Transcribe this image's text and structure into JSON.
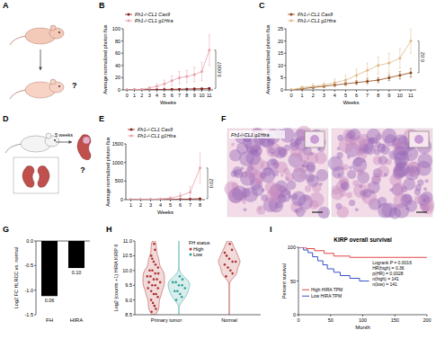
{
  "panel_labels": [
    "A",
    "B",
    "C",
    "D",
    "E",
    "F",
    "G",
    "H",
    "I"
  ],
  "diagrams": {
    "A": {
      "question": "?"
    },
    "D": {
      "duration": "5 weeks",
      "question": "?"
    },
    "F": {
      "label": "Fh1-/-CL1 g1Hira"
    }
  },
  "chart_data": [
    {
      "type": "line",
      "x": [
        0,
        1,
        2,
        3,
        4,
        5,
        6,
        7,
        8,
        9,
        10,
        11
      ],
      "xlim": [
        -0.5,
        11.5
      ],
      "xticks": [
        0,
        1,
        2,
        3,
        4,
        5,
        6,
        7,
        8,
        9,
        10,
        11
      ],
      "ylim": [
        0,
        100
      ],
      "yticks": [
        0,
        20,
        40,
        60,
        80,
        100
      ],
      "x_label": "Weeks",
      "y_label": "Average normalized photon flux",
      "annotation": "0.0007",
      "marker": "circle",
      "legend": "top left",
      "series": [
        {
          "name": "Fh1-/-CL1 Cas9",
          "color": "#8b1a1a",
          "values": [
            0,
            0.2,
            0.3,
            0.5,
            0.6,
            0.8,
            1,
            1.2,
            1.5,
            1.8,
            2,
            2.5
          ],
          "errors": [
            0,
            0.1,
            0.2,
            0.3,
            0.3,
            0.4,
            0.5,
            0.6,
            0.7,
            0.8,
            1,
            1.2
          ]
        },
        {
          "name": "Fh1-/-CL1 g1Hira",
          "color": "#e8a0a8",
          "values": [
            0,
            0.5,
            1,
            3,
            6,
            10,
            15,
            20,
            22,
            25,
            30,
            65
          ],
          "errors": [
            0,
            0.5,
            1,
            2,
            4,
            6,
            8,
            10,
            10,
            12,
            15,
            25
          ]
        }
      ]
    },
    {
      "type": "line",
      "x": [
        0,
        1,
        2,
        3,
        4,
        5,
        6,
        7,
        8,
        9,
        10,
        11
      ],
      "xlim": [
        -0.5,
        11.5
      ],
      "xticks": [
        0,
        1,
        2,
        3,
        4,
        5,
        6,
        7,
        8,
        9,
        10,
        11
      ],
      "ylim": [
        0,
        25
      ],
      "yticks": [
        0,
        5,
        10,
        15,
        20,
        25
      ],
      "x_label": "Weeks",
      "y_label": "Average normalized photon flux",
      "annotation": "0.02",
      "marker": "circle",
      "legend": "top left",
      "series": [
        {
          "name": "Fh1-/-CL1 Cas9",
          "color": "#8b4513",
          "values": [
            0,
            0.5,
            1,
            1.5,
            2,
            2.5,
            3,
            3.5,
            4,
            5,
            6,
            7
          ],
          "errors": [
            0,
            0.3,
            0.4,
            0.5,
            0.6,
            0.7,
            0.8,
            1,
            1,
            1.2,
            1.5,
            1.8
          ]
        },
        {
          "name": "Fh1-/-CL1 g1Hira",
          "color": "#deb887",
          "values": [
            0,
            1,
            1.5,
            2,
            3,
            4,
            6,
            8,
            10,
            11,
            13,
            20
          ],
          "errors": [
            0,
            0.5,
            1,
            1,
            1.5,
            2,
            2.5,
            3,
            3.5,
            4,
            4,
            5
          ]
        }
      ]
    },
    {
      "type": "line",
      "x": [
        1,
        2,
        3,
        4,
        5,
        6,
        7,
        8
      ],
      "xlim": [
        0.5,
        8.5
      ],
      "xticks": [
        1,
        2,
        3,
        4,
        5,
        6,
        7,
        8
      ],
      "ylim": [
        0,
        1500
      ],
      "yticks": [
        0,
        500,
        1000,
        1500
      ],
      "x_label": "Weeks",
      "y_label": "Average normalized photon flux",
      "annotation": "0.02",
      "marker": "circle",
      "legend": "top left",
      "series": [
        {
          "name": "Fh1-/-CL1 Cas9",
          "color": "#8b1a1a",
          "values": [
            0,
            1,
            2,
            3,
            5,
            10,
            15,
            25
          ],
          "errors": [
            0,
            1,
            1,
            2,
            3,
            5,
            8,
            12
          ]
        },
        {
          "name": "Fh1-/-CL1 g1Hira",
          "color": "#e8a0a8",
          "values": [
            0,
            5,
            10,
            20,
            40,
            100,
            200,
            850
          ],
          "errors": [
            0,
            3,
            8,
            15,
            30,
            80,
            150,
            400
          ]
        }
      ]
    },
    {
      "type": "bar",
      "categories": [
        "FH",
        "HIRA"
      ],
      "values": [
        -1.12,
        -0.55
      ],
      "annotations": [
        "0.06",
        "0.10"
      ],
      "color": "#000000",
      "ylim": [
        -1.5,
        0
      ],
      "yticks": [
        {
          "value": 0,
          "label": "0.0"
        },
        -0.5,
        {
          "value": -1,
          "label": "-1.0"
        },
        -1.5
      ],
      "y_label": "Log2 FC HLRCC vs. normal"
    },
    {
      "type": "violin",
      "categories": [
        "Primary tumor",
        "Normal"
      ],
      "ylim": [
        8.5,
        11
      ],
      "yticks": [
        8.5,
        {
          "value": 9,
          "label": "9.0"
        },
        9.5,
        {
          "value": 10,
          "label": "10.0"
        },
        10.5,
        {
          "value": 11,
          "label": "11.0"
        }
      ],
      "y_label": "Log2 (counts +1) HIRA KIRP II",
      "legend_title": "FH status",
      "series": [
        {
          "name": "High",
          "color": "#b03030",
          "values": [
            [
              8.6,
              8.7,
              8.8,
              8.9,
              9.0,
              9.1,
              9.2,
              9.2,
              9.3,
              9.4,
              9.4,
              9.5,
              9.5,
              9.6,
              9.6,
              9.7,
              9.7,
              9.8,
              9.8,
              9.9,
              9.9,
              10.0,
              10.0,
              10.1,
              10.2,
              10.3,
              10.4,
              10.5,
              10.7,
              10.9
            ],
            [
              9.8,
              9.9,
              10.0,
              10.1,
              10.2,
              10.3,
              10.3,
              10.4,
              10.5,
              10.6,
              10.7,
              10.9
            ]
          ]
        },
        {
          "name": "Low",
          "color": "#2aa198",
          "values": [
            [
              9.0,
              9.1,
              9.2,
              9.3,
              9.3,
              9.4,
              9.5,
              9.5,
              9.6,
              9.6,
              9.7,
              9.8
            ],
            []
          ]
        }
      ]
    },
    {
      "type": "survival",
      "title": "KIRP overall survival",
      "x_label": "Month",
      "y_label": "Percent survival",
      "xlim": [
        0,
        200
      ],
      "xticks": [
        0,
        50,
        100,
        150,
        200
      ],
      "ylim": [
        0,
        100
      ],
      "yticks": [
        0,
        50,
        100
      ],
      "annotations": [
        "Logrank P = 0.0016",
        "HR(high) = 0.36",
        "p(HR) = 0.0028",
        "n(high) = 141",
        "n(low) = 141"
      ],
      "series": [
        {
          "name": "Low HIRA TPM",
          "color": "#1f3fbf",
          "x": [
            0,
            8,
            15,
            22,
            30,
            38,
            45,
            55,
            65,
            80,
            95,
            110
          ],
          "values": [
            100,
            96,
            92,
            86,
            80,
            74,
            68,
            63,
            58,
            54,
            50,
            50
          ]
        },
        {
          "name": "High HIRA TPM",
          "color": "#e03030",
          "x": [
            0,
            12,
            25,
            40,
            55,
            80,
            120,
            160,
            200
          ],
          "values": [
            100,
            98,
            95,
            91,
            87,
            85,
            85,
            85,
            85
          ]
        }
      ]
    }
  ]
}
